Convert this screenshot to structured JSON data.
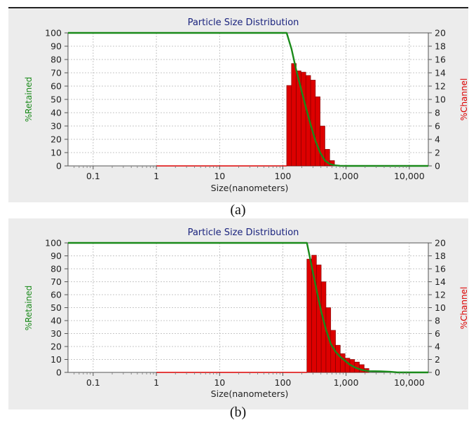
{
  "colors": {
    "retained": "#1a8a1a",
    "channel": "#dd0000",
    "title": "#1a237e",
    "plot_bg": "#ffffff",
    "frame_bg": "#ececec"
  },
  "chart_data": [
    {
      "type": "bar",
      "caption": "(a)",
      "title": "Particle Size Distribution",
      "xlabel": "Size(nanometers)",
      "ylabel": "%Retained",
      "ylabel_right": "%Channel",
      "x_scale": "log",
      "xlim": [
        0.04,
        20000
      ],
      "ylim": [
        0,
        100
      ],
      "ylim_right": [
        0,
        20
      ],
      "x_ticks": [
        0.1,
        1,
        10,
        100,
        1000,
        10000
      ],
      "x_tick_labels": [
        "0.1",
        "1",
        "10",
        "100",
        "1,000",
        "10,000"
      ],
      "y_ticks": [
        0,
        10,
        20,
        30,
        40,
        50,
        60,
        70,
        80,
        90,
        100
      ],
      "y_ticks_right": [
        0,
        2,
        4,
        6,
        8,
        10,
        12,
        14,
        16,
        18,
        20
      ],
      "grid": true,
      "series": [
        {
          "name": "%Channel",
          "type": "bar",
          "axis": "right",
          "bin_edges": [
            115,
            137,
            163,
            194,
            231,
            275,
            327,
            389,
            463,
            551,
            656
          ],
          "values": [
            12.1,
            15.4,
            14.3,
            14.1,
            13.6,
            12.9,
            10.4,
            6.0,
            2.5,
            0.8
          ]
        },
        {
          "name": "%Retained",
          "type": "line",
          "axis": "left",
          "x": [
            0.04,
            115,
            137,
            163,
            194,
            231,
            275,
            327,
            389,
            463,
            551,
            656,
            800,
            1000,
            5000,
            20000
          ],
          "y": [
            100,
            100,
            88,
            72,
            58,
            44,
            31,
            19,
            10,
            4,
            1.5,
            0.5,
            0.1,
            0,
            0,
            0
          ]
        },
        {
          "name": "%Channel (baseline)",
          "type": "line",
          "axis": "right",
          "x": [
            1,
            115
          ],
          "y": [
            0,
            0
          ]
        }
      ]
    },
    {
      "type": "bar",
      "caption": "(b)",
      "title": "Particle Size Distribution",
      "xlabel": "Size(nanometers)",
      "ylabel": "%Retained",
      "ylabel_right": "%Channel",
      "x_scale": "log",
      "xlim": [
        0.04,
        20000
      ],
      "ylim": [
        0,
        100
      ],
      "ylim_right": [
        0,
        20
      ],
      "x_ticks": [
        0.1,
        1,
        10,
        100,
        1000,
        10000
      ],
      "x_tick_labels": [
        "0.1",
        "1",
        "10",
        "100",
        "1,000",
        "10,000"
      ],
      "y_ticks": [
        0,
        10,
        20,
        30,
        40,
        50,
        60,
        70,
        80,
        90,
        100
      ],
      "y_ticks_right": [
        0,
        2,
        4,
        6,
        8,
        10,
        12,
        14,
        16,
        18,
        20
      ],
      "grid": true,
      "series": [
        {
          "name": "%Channel",
          "type": "bar",
          "axis": "right",
          "bin_edges": [
            240,
            286,
            340,
            404,
            481,
            572,
            681,
            810,
            964,
            1147,
            1365,
            1624,
            1933,
            2300
          ],
          "values": [
            17.5,
            18.1,
            16.6,
            14.0,
            10.0,
            6.5,
            4.2,
            2.9,
            2.2,
            2.0,
            1.6,
            1.2,
            0.6
          ]
        },
        {
          "name": "%Retained",
          "type": "line",
          "axis": "left",
          "x": [
            0.04,
            240,
            286,
            340,
            404,
            481,
            572,
            681,
            810,
            964,
            1147,
            1365,
            1624,
            1933,
            2300,
            3500,
            5000,
            6500,
            20000
          ],
          "y": [
            100,
            100,
            82,
            64,
            47,
            33,
            22,
            16,
            12,
            9,
            6,
            4,
            2.5,
            1.5,
            1,
            0.8,
            0.5,
            0,
            0
          ]
        },
        {
          "name": "%Channel (baseline)",
          "type": "line",
          "axis": "right",
          "x": [
            1,
            240
          ],
          "y": [
            0,
            0
          ]
        }
      ]
    }
  ]
}
